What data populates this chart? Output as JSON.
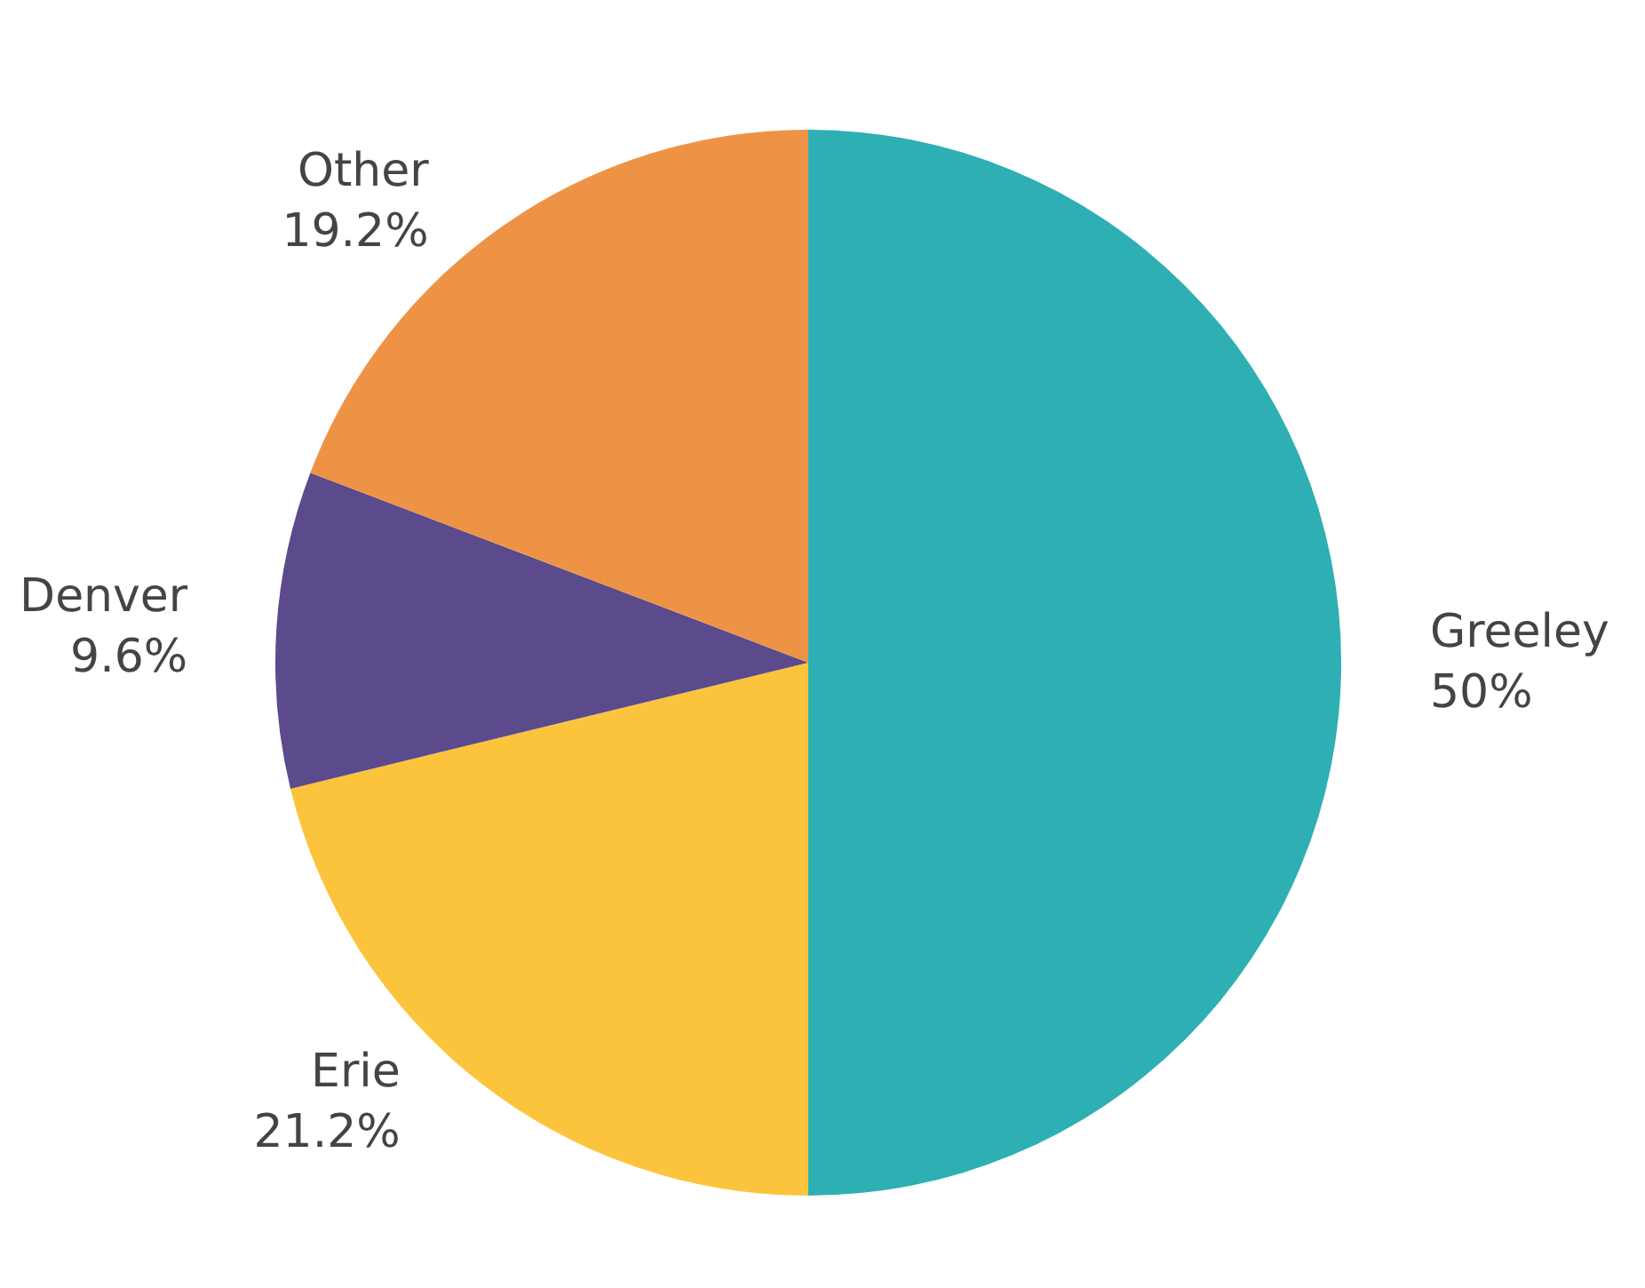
{
  "chart_data": {
    "type": "pie",
    "categories": [
      "Greeley",
      "Erie",
      "Denver",
      "Other"
    ],
    "values": [
      50,
      21.2,
      9.6,
      19.2
    ],
    "colors": [
      "#2eafb3",
      "#fcc43c",
      "#5b4a8c",
      "#ee9346"
    ],
    "value_labels": [
      "50%",
      "21.2%",
      "9.6%",
      "19.2%"
    ]
  }
}
